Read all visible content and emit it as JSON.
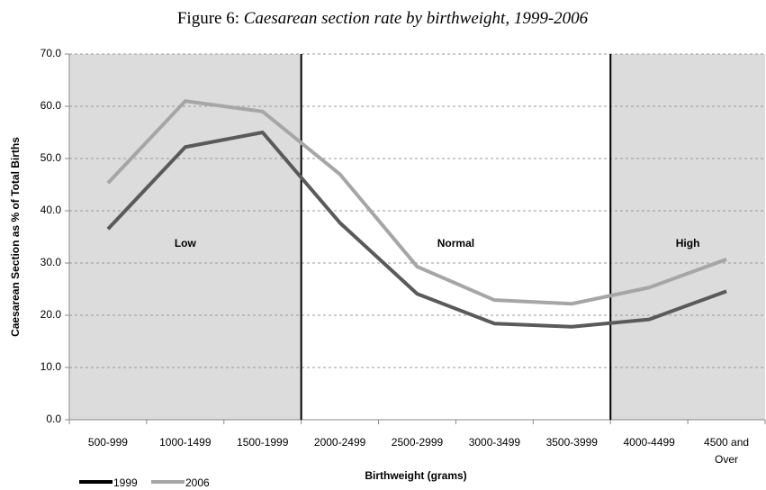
{
  "chart_data": {
    "type": "line",
    "title_prefix": "Figure 6:",
    "title": "Caesarean section rate by birthweight, 1999-2006",
    "x_label": "Birthweight (grams)",
    "y_label": "Caesarean Section as % of Total Births",
    "categories": [
      "500-999",
      "1000-1499",
      "1500-1999",
      "2000-2499",
      "2500-2999",
      "3000-3499",
      "3500-3999",
      "4000-4499",
      "4500 and Over"
    ],
    "series": [
      {
        "name": "1999",
        "color": "#5a5a5a",
        "legend_color": "#000000",
        "values": [
          36.5,
          52.2,
          55.0,
          37.7,
          24.1,
          18.4,
          17.8,
          19.2,
          24.6
        ]
      },
      {
        "name": "2006",
        "color": "#a6a6a6",
        "legend_color": "#a6a6a6",
        "values": [
          45.3,
          61.0,
          59.0,
          47.0,
          29.3,
          22.9,
          22.2,
          25.3,
          30.7
        ]
      }
    ],
    "regions": [
      {
        "label": "Low",
        "first": 0,
        "last": 2,
        "shaded": true
      },
      {
        "label": "Normal",
        "first": 3,
        "last": 6,
        "shaded": false
      },
      {
        "label": "High",
        "first": 7,
        "last": 8,
        "shaded": true
      }
    ],
    "ylim": [
      0,
      70
    ],
    "yticks": [
      {
        "value": 0,
        "label": "0.0"
      },
      {
        "value": 10,
        "label": "10.0"
      },
      {
        "value": 20,
        "label": "20.0"
      },
      {
        "value": 30,
        "label": "30.0"
      },
      {
        "value": 40,
        "label": "40.0"
      },
      {
        "value": 50,
        "label": "50.0"
      },
      {
        "value": 60,
        "label": "60.0"
      },
      {
        "value": 70,
        "label": "70.0"
      }
    ],
    "grid": true
  }
}
